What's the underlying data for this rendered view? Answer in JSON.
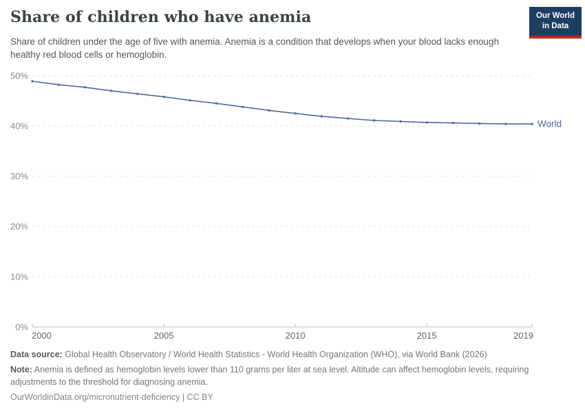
{
  "header": {
    "title": "Share of children who have anemia",
    "subtitle": "Share of children under the age of five with anemia. Anemia is a condition that develops when your blood lacks enough healthy red blood cells or hemoglobin.",
    "logo": {
      "line1": "Our World",
      "line2": "in Data"
    }
  },
  "chart_data": {
    "type": "line",
    "title": "Share of children who have anemia",
    "xlabel": "",
    "ylabel": "",
    "x": [
      2000,
      2001,
      2002,
      2003,
      2004,
      2005,
      2006,
      2007,
      2008,
      2009,
      2010,
      2011,
      2012,
      2013,
      2014,
      2015,
      2016,
      2017,
      2018,
      2019
    ],
    "series": [
      {
        "name": "World",
        "color": "#4c6a9c",
        "values": [
          48.9,
          48.2,
          47.7,
          47.0,
          46.4,
          45.8,
          45.1,
          44.5,
          43.8,
          43.1,
          42.5,
          41.9,
          41.5,
          41.1,
          40.9,
          40.7,
          40.6,
          40.5,
          40.4,
          40.4
        ]
      }
    ],
    "ylim": [
      0,
      50
    ],
    "yticks": [
      0,
      10,
      20,
      30,
      40,
      50
    ],
    "ytick_labels": [
      "0%",
      "10%",
      "20%",
      "30%",
      "40%",
      "50%"
    ],
    "xticks": [
      2000,
      2005,
      2010,
      2015,
      2019
    ],
    "grid": "horizontal-dashed",
    "legend_position": "end-of-line-label"
  },
  "footer": {
    "data_source_label": "Data source:",
    "data_source_text": "Global Health Observatory / World Health Statistics - World Health Organization (WHO), via World Bank (2026)",
    "note_label": "Note:",
    "note_text": "Anemia is defined as hemoglobin levels lower than 110 grams per liter at sea level. Altitude can affect hemoglobin levels, requiring adjustments to the threshold for diagnosing anemia.",
    "license_text": "OurWorldinData.org/micronutrient-deficiency | CC BY"
  },
  "colors": {
    "line": "#4c6a9c",
    "gridline": "#dcdcdc",
    "axis": "#bbbbbb",
    "ytick_label": "#8a8a8a",
    "xtick_label": "#636363",
    "logo_navy": "#1d3d63",
    "logo_red": "#c9231f"
  }
}
